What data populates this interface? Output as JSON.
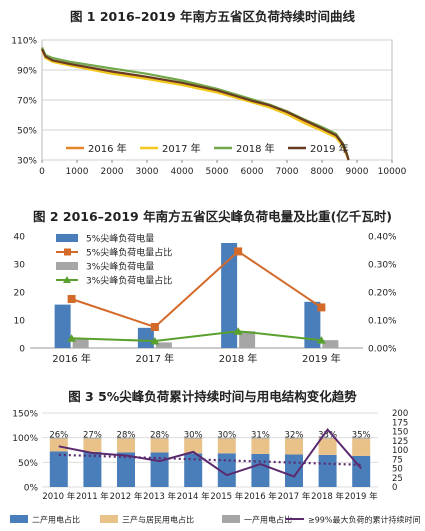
{
  "chart_data": [
    {
      "type": "line",
      "title": "图 1  2016–2019 年南方五省区负荷持续时间曲线",
      "xlabel": "",
      "ylabel": "",
      "xlim": [
        0,
        10000
      ],
      "ylim": [
        30,
        110
      ],
      "xticks": [
        "0",
        "1000",
        "2000",
        "3000",
        "4000",
        "5000",
        "6000",
        "7000",
        "8000",
        "9000",
        "10000"
      ],
      "yticks": [
        "30%",
        "50%",
        "70%",
        "90%",
        "110%"
      ],
      "grid": true,
      "legend_position": "bottom-left",
      "series": [
        {
          "name": "2016 年",
          "color": "#e5852a",
          "x": [
            0,
            100,
            300,
            800,
            2000,
            3000,
            4000,
            5000,
            6000,
            6500,
            7000,
            7500,
            8000,
            8400,
            8600,
            8700,
            8760
          ],
          "y": [
            104,
            98,
            96,
            93.5,
            88,
            84.5,
            80.5,
            75.5,
            69,
            66,
            61,
            55.5,
            50,
            46,
            40,
            34,
            30
          ]
        },
        {
          "name": "2017 年",
          "color": "#f2c81e",
          "x": [
            0,
            100,
            300,
            800,
            2000,
            3000,
            4000,
            5000,
            6000,
            6500,
            7000,
            7500,
            8000,
            8400,
            8600,
            8700,
            8760
          ],
          "y": [
            103.5,
            98,
            95.5,
            93,
            87.5,
            84,
            80,
            75,
            68.5,
            65,
            60.5,
            54.5,
            49.5,
            45,
            39,
            33.5,
            30
          ]
        },
        {
          "name": "2018 年",
          "color": "#72a84a",
          "x": [
            0,
            100,
            300,
            800,
            2000,
            3000,
            4000,
            5000,
            6000,
            6500,
            7000,
            7500,
            8000,
            8400,
            8600,
            8700,
            8760
          ],
          "y": [
            105,
            100,
            98,
            95.5,
            91,
            87.5,
            83,
            77.5,
            70.5,
            67,
            62.5,
            57,
            52,
            47.5,
            41,
            35,
            30
          ]
        },
        {
          "name": "2019 年",
          "color": "#6b3a22",
          "x": [
            0,
            100,
            300,
            800,
            2000,
            3000,
            4000,
            5000,
            6000,
            6500,
            7000,
            7500,
            8000,
            8400,
            8600,
            8700,
            8760
          ],
          "y": [
            104,
            99,
            96.5,
            94,
            89,
            85.5,
            81.5,
            76.5,
            69.5,
            66.5,
            62,
            56.5,
            51,
            46.5,
            40.5,
            34.5,
            30
          ]
        }
      ]
    },
    {
      "type": "bar",
      "title": "图 2  2016–2019 年南方五省区尖峰负荷电量及比重(亿千瓦时)",
      "categories": [
        "2016 年",
        "2017 年",
        "2018 年",
        "2019 年"
      ],
      "ylim": [
        0,
        40
      ],
      "y2lim": [
        0,
        0.4
      ],
      "yticks": [
        "0",
        "10",
        "20",
        "30",
        "40"
      ],
      "y2ticks": [
        "0.00%",
        "0.10%",
        "0.20%",
        "0.30%",
        "0.40%"
      ],
      "legend_position": "top-left",
      "series": [
        {
          "name": "5%尖峰负荷电量",
          "kind": "bar",
          "axis": "left",
          "color": "#4a7ebb",
          "values": [
            15.5,
            7.2,
            37.5,
            16.5
          ]
        },
        {
          "name": "5%尖峰负荷电量占比",
          "kind": "line",
          "axis": "right",
          "color": "#d46a2a",
          "values": [
            0.175,
            0.075,
            0.345,
            0.145
          ]
        },
        {
          "name": "3%尖峰负荷电量",
          "kind": "bar",
          "axis": "left",
          "color": "#a6a6a6",
          "values": [
            3.5,
            2.0,
            6.0,
            2.8
          ]
        },
        {
          "name": "3%尖峰负荷电量占比",
          "kind": "line",
          "axis": "right",
          "color": "#5aa02c",
          "values": [
            0.035,
            0.025,
            0.06,
            0.028
          ]
        }
      ]
    },
    {
      "type": "bar",
      "title": "图 3  5%尖峰负荷累计持续时间与用电结构变化趋势",
      "categories": [
        "2010 年",
        "2011 年",
        "2012 年",
        "2013 年",
        "2014 年",
        "2015 年",
        "2016 年",
        "2017 年",
        "2018 年",
        "2019 年"
      ],
      "ylim": [
        0,
        150
      ],
      "y2lim": [
        0,
        200
      ],
      "yticks": [
        "0%",
        "50%",
        "100%",
        "150%"
      ],
      "y2ticks": [
        "0",
        "25",
        "50",
        "75",
        "100",
        "125",
        "150",
        "175",
        "200"
      ],
      "grid": true,
      "legend_position": "bottom",
      "series": [
        {
          "name": "二产用电占比",
          "kind": "stacked-bar",
          "color": "#4a7ebb",
          "values": [
            72,
            71,
            70,
            70,
            68,
            68,
            67,
            66,
            65,
            63
          ]
        },
        {
          "name": "三产与居民用电占比",
          "kind": "stacked-bar",
          "color": "#e9c28a",
          "values": [
            26,
            27,
            28,
            28,
            30,
            30,
            31,
            32,
            33,
            35
          ],
          "labels": [
            "26%",
            "27%",
            "28%",
            "28%",
            "30%",
            "30%",
            "31%",
            "32%",
            "33%",
            "35%"
          ]
        },
        {
          "name": "一产用电占比",
          "kind": "stacked-bar",
          "color": "#a6a6a6",
          "values": [
            2,
            2,
            2,
            2,
            2,
            2,
            2,
            2,
            2,
            2
          ]
        },
        {
          "name": "≥99%最大负荷的累计持续时间",
          "kind": "line",
          "axis": "right",
          "color": "#5b2a6e",
          "values": [
            110,
            92,
            85,
            70,
            95,
            32,
            62,
            28,
            155,
            50
          ]
        },
        {
          "name": "trend",
          "kind": "dotted-line",
          "axis": "right",
          "color": "#5b2a6e",
          "values": [
            87,
            84,
            81,
            78,
            75,
            72,
            69,
            66,
            63,
            60
          ]
        }
      ]
    }
  ]
}
